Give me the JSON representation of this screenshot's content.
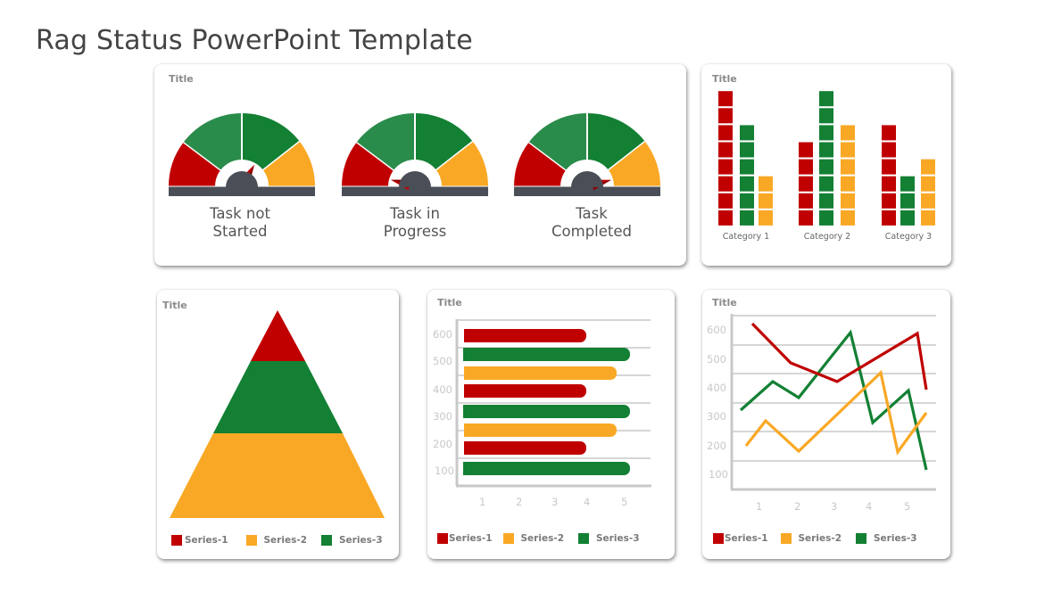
{
  "page": {
    "title": "Rag Status PowerPoint Template"
  },
  "colors": {
    "red": "#c00000",
    "green": "#138034",
    "green_light": "#2a8c4a",
    "yellow": "#f9a825",
    "hub": "#4a4e57",
    "grid": "#c8c8c8",
    "axis_text": "#c8c8c8"
  },
  "cards": {
    "gauges": {
      "title": "Title",
      "items": [
        {
          "label_line1": "Task not",
          "label_line2": "Started",
          "needle_angle_deg": 60
        },
        {
          "label_line1": "Task in",
          "label_line2": "Progress",
          "needle_angle_deg": 165
        },
        {
          "label_line1": "Task",
          "label_line2": "Completed",
          "needle_angle_deg": 15
        }
      ]
    },
    "blocks": {
      "title": "Title",
      "categories": [
        "Category 1",
        "Category 2",
        "Category 3"
      ]
    },
    "pyramid": {
      "title": "Title",
      "legend": [
        "Series-1",
        "Series-2",
        "Series-3"
      ]
    },
    "bars": {
      "title": "Title",
      "y_ticks": [
        "600",
        "500",
        "400",
        "300",
        "200",
        "100"
      ],
      "x_ticks": [
        "1",
        "2",
        "3",
        "4",
        "5"
      ],
      "legend": [
        "Series-1",
        "Series-2",
        "Series-3"
      ]
    },
    "lines": {
      "title": "Title",
      "y_ticks": [
        "600",
        "500",
        "400",
        "300",
        "200",
        "100"
      ],
      "x_ticks": [
        "1",
        "2",
        "3",
        "4",
        "5"
      ],
      "legend": [
        "Series-1",
        "Series-2",
        "Series-3"
      ]
    }
  },
  "chart_data": [
    {
      "type": "gauge",
      "title": "Title",
      "segments": [
        "red",
        "green",
        "green",
        "yellow"
      ],
      "gauges": [
        {
          "label": "Task not Started",
          "needle": "upper-right (green zone boundary)"
        },
        {
          "label": "Task in Progress",
          "needle": "left (red zone)"
        },
        {
          "label": "Task Completed",
          "needle": "right (yellow zone)"
        }
      ]
    },
    {
      "type": "bar",
      "subtype": "stacked-block pictograph",
      "title": "Title",
      "categories": [
        "Category 1",
        "Category 2",
        "Category 3"
      ],
      "series": [
        {
          "name": "Red",
          "color": "#c00000",
          "values": [
            8,
            5,
            6
          ]
        },
        {
          "name": "Green",
          "color": "#138034",
          "values": [
            6,
            8,
            3
          ]
        },
        {
          "name": "Yellow",
          "color": "#f9a825",
          "values": [
            3,
            6,
            4
          ]
        }
      ]
    },
    {
      "type": "pyramid",
      "title": "Title",
      "tiers_top_to_bottom": [
        {
          "name": "Series-1",
          "color": "#c00000",
          "height_share": 0.25
        },
        {
          "name": "Series-3",
          "color": "#138034",
          "height_share": 0.35
        },
        {
          "name": "Series-2",
          "color": "#f9a825",
          "height_share": 0.4
        }
      ],
      "legend": [
        "Series-1",
        "Series-2",
        "Series-3"
      ],
      "legend_position": "bottom"
    },
    {
      "type": "bar",
      "orientation": "horizontal",
      "title": "Title",
      "y_tick_labels": [
        "600",
        "500",
        "400",
        "300",
        "200",
        "100"
      ],
      "x_tick_labels": [
        "1",
        "2",
        "3",
        "4",
        "5"
      ],
      "bars_top_to_bottom": [
        {
          "series": "Series-1",
          "value": 4.0
        },
        {
          "series": "Series-3",
          "value": 5.2
        },
        {
          "series": "Series-2",
          "value": 4.8
        },
        {
          "series": "Series-1",
          "value": 4.0
        },
        {
          "series": "Series-3",
          "value": 5.2
        },
        {
          "series": "Series-2",
          "value": 4.8
        },
        {
          "series": "Series-1",
          "value": 4.0
        },
        {
          "series": "Series-3",
          "value": 5.2
        }
      ],
      "legend": [
        "Series-1",
        "Series-2",
        "Series-3"
      ],
      "grid": true,
      "legend_position": "bottom"
    },
    {
      "type": "line",
      "title": "Title",
      "y_tick_labels": [
        "600",
        "500",
        "400",
        "300",
        "200",
        "100"
      ],
      "x_tick_labels": [
        "1",
        "2",
        "3",
        "4",
        "5"
      ],
      "ylim": [
        100,
        650
      ],
      "series": [
        {
          "name": "Series-1",
          "color": "#c00000",
          "points": [
            [
              0.9,
              620
            ],
            [
              2.0,
              485
            ],
            [
              3.05,
              420
            ],
            [
              5.2,
              585
            ],
            [
              5.45,
              390
            ]
          ]
        },
        {
          "name": "Series-3",
          "color": "#138034",
          "points": [
            [
              0.6,
              320
            ],
            [
              1.4,
              420
            ],
            [
              2.0,
              370
            ],
            [
              3.45,
              590
            ],
            [
              4.1,
              280
            ],
            [
              5.05,
              390
            ],
            [
              5.5,
              115
            ]
          ]
        },
        {
          "name": "Series-2",
          "color": "#f9a825",
          "points": [
            [
              0.75,
              200
            ],
            [
              1.2,
              290
            ],
            [
              2.0,
              185
            ],
            [
              4.25,
              450
            ],
            [
              4.7,
              180
            ],
            [
              5.5,
              310
            ]
          ]
        }
      ],
      "legend": [
        "Series-1",
        "Series-2",
        "Series-3"
      ],
      "grid": true,
      "legend_position": "bottom"
    }
  ]
}
